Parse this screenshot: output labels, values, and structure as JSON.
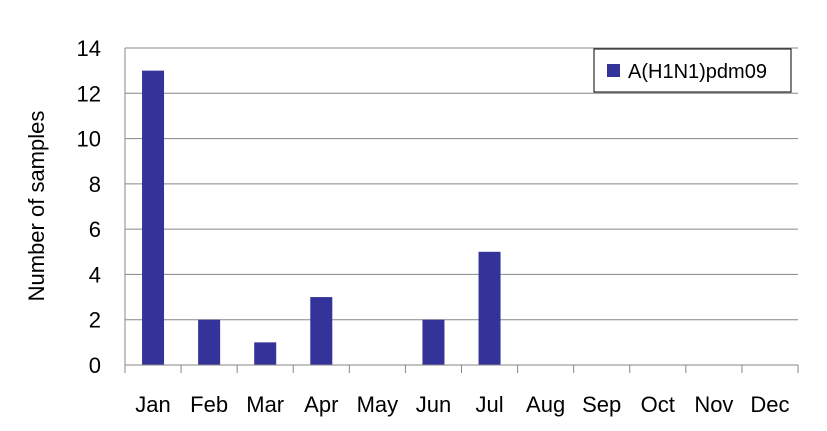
{
  "chart_data": {
    "type": "bar",
    "categories": [
      "Jan",
      "Feb",
      "Mar",
      "Apr",
      "May",
      "Jun",
      "Jul",
      "Aug",
      "Sep",
      "Oct",
      "Nov",
      "Dec"
    ],
    "series": [
      {
        "name": "A(H1N1)pdm09",
        "values": [
          13,
          2,
          1,
          3,
          0,
          2,
          5,
          0,
          0,
          0,
          0,
          0
        ]
      }
    ],
    "ylabel": "Number of samples",
    "xlabel": "",
    "ylim": [
      0,
      14
    ],
    "yticks": [
      0,
      2,
      4,
      6,
      8,
      10,
      12,
      14
    ],
    "grid": true,
    "legend_position": "top-right",
    "colors": {
      "bar": "#333399",
      "grid": "#878787",
      "axis": "#878787"
    }
  }
}
